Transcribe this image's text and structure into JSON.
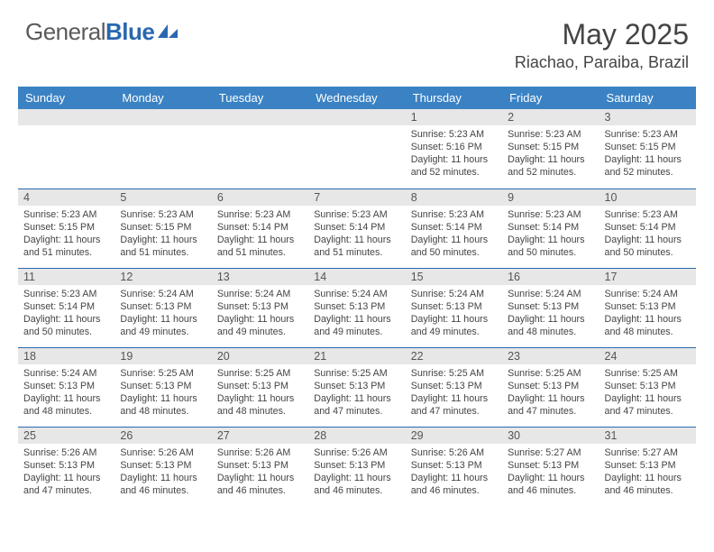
{
  "colors": {
    "header_bg": "#3b82c4",
    "header_text": "#ffffff",
    "row_divider": "#2968b0",
    "daynum_bg": "#e7e7e7",
    "body_text": "#444444",
    "logo_gray": "#5a5a5a",
    "logo_blue": "#2968b0",
    "page_bg": "#ffffff"
  },
  "typography": {
    "title_fontsize_pt": 24,
    "subtitle_fontsize_pt": 14,
    "header_fontsize_pt": 10,
    "daynum_fontsize_pt": 9.5,
    "body_fontsize_pt": 8
  },
  "logo": {
    "word1": "General",
    "word2": "Blue"
  },
  "title": "May 2025",
  "subtitle": "Riachao, Paraiba, Brazil",
  "day_headers": [
    "Sunday",
    "Monday",
    "Tuesday",
    "Wednesday",
    "Thursday",
    "Friday",
    "Saturday"
  ],
  "weeks": [
    [
      {
        "num": "",
        "sunrise": "",
        "sunset": "",
        "daylight": "",
        "empty": true
      },
      {
        "num": "",
        "sunrise": "",
        "sunset": "",
        "daylight": "",
        "empty": true
      },
      {
        "num": "",
        "sunrise": "",
        "sunset": "",
        "daylight": "",
        "empty": true
      },
      {
        "num": "",
        "sunrise": "",
        "sunset": "",
        "daylight": "",
        "empty": true
      },
      {
        "num": "1",
        "sunrise": "Sunrise: 5:23 AM",
        "sunset": "Sunset: 5:16 PM",
        "daylight": "Daylight: 11 hours and 52 minutes."
      },
      {
        "num": "2",
        "sunrise": "Sunrise: 5:23 AM",
        "sunset": "Sunset: 5:15 PM",
        "daylight": "Daylight: 11 hours and 52 minutes."
      },
      {
        "num": "3",
        "sunrise": "Sunrise: 5:23 AM",
        "sunset": "Sunset: 5:15 PM",
        "daylight": "Daylight: 11 hours and 52 minutes."
      }
    ],
    [
      {
        "num": "4",
        "sunrise": "Sunrise: 5:23 AM",
        "sunset": "Sunset: 5:15 PM",
        "daylight": "Daylight: 11 hours and 51 minutes."
      },
      {
        "num": "5",
        "sunrise": "Sunrise: 5:23 AM",
        "sunset": "Sunset: 5:15 PM",
        "daylight": "Daylight: 11 hours and 51 minutes."
      },
      {
        "num": "6",
        "sunrise": "Sunrise: 5:23 AM",
        "sunset": "Sunset: 5:14 PM",
        "daylight": "Daylight: 11 hours and 51 minutes."
      },
      {
        "num": "7",
        "sunrise": "Sunrise: 5:23 AM",
        "sunset": "Sunset: 5:14 PM",
        "daylight": "Daylight: 11 hours and 51 minutes."
      },
      {
        "num": "8",
        "sunrise": "Sunrise: 5:23 AM",
        "sunset": "Sunset: 5:14 PM",
        "daylight": "Daylight: 11 hours and 50 minutes."
      },
      {
        "num": "9",
        "sunrise": "Sunrise: 5:23 AM",
        "sunset": "Sunset: 5:14 PM",
        "daylight": "Daylight: 11 hours and 50 minutes."
      },
      {
        "num": "10",
        "sunrise": "Sunrise: 5:23 AM",
        "sunset": "Sunset: 5:14 PM",
        "daylight": "Daylight: 11 hours and 50 minutes."
      }
    ],
    [
      {
        "num": "11",
        "sunrise": "Sunrise: 5:23 AM",
        "sunset": "Sunset: 5:14 PM",
        "daylight": "Daylight: 11 hours and 50 minutes."
      },
      {
        "num": "12",
        "sunrise": "Sunrise: 5:24 AM",
        "sunset": "Sunset: 5:13 PM",
        "daylight": "Daylight: 11 hours and 49 minutes."
      },
      {
        "num": "13",
        "sunrise": "Sunrise: 5:24 AM",
        "sunset": "Sunset: 5:13 PM",
        "daylight": "Daylight: 11 hours and 49 minutes."
      },
      {
        "num": "14",
        "sunrise": "Sunrise: 5:24 AM",
        "sunset": "Sunset: 5:13 PM",
        "daylight": "Daylight: 11 hours and 49 minutes."
      },
      {
        "num": "15",
        "sunrise": "Sunrise: 5:24 AM",
        "sunset": "Sunset: 5:13 PM",
        "daylight": "Daylight: 11 hours and 49 minutes."
      },
      {
        "num": "16",
        "sunrise": "Sunrise: 5:24 AM",
        "sunset": "Sunset: 5:13 PM",
        "daylight": "Daylight: 11 hours and 48 minutes."
      },
      {
        "num": "17",
        "sunrise": "Sunrise: 5:24 AM",
        "sunset": "Sunset: 5:13 PM",
        "daylight": "Daylight: 11 hours and 48 minutes."
      }
    ],
    [
      {
        "num": "18",
        "sunrise": "Sunrise: 5:24 AM",
        "sunset": "Sunset: 5:13 PM",
        "daylight": "Daylight: 11 hours and 48 minutes."
      },
      {
        "num": "19",
        "sunrise": "Sunrise: 5:25 AM",
        "sunset": "Sunset: 5:13 PM",
        "daylight": "Daylight: 11 hours and 48 minutes."
      },
      {
        "num": "20",
        "sunrise": "Sunrise: 5:25 AM",
        "sunset": "Sunset: 5:13 PM",
        "daylight": "Daylight: 11 hours and 48 minutes."
      },
      {
        "num": "21",
        "sunrise": "Sunrise: 5:25 AM",
        "sunset": "Sunset: 5:13 PM",
        "daylight": "Daylight: 11 hours and 47 minutes."
      },
      {
        "num": "22",
        "sunrise": "Sunrise: 5:25 AM",
        "sunset": "Sunset: 5:13 PM",
        "daylight": "Daylight: 11 hours and 47 minutes."
      },
      {
        "num": "23",
        "sunrise": "Sunrise: 5:25 AM",
        "sunset": "Sunset: 5:13 PM",
        "daylight": "Daylight: 11 hours and 47 minutes."
      },
      {
        "num": "24",
        "sunrise": "Sunrise: 5:25 AM",
        "sunset": "Sunset: 5:13 PM",
        "daylight": "Daylight: 11 hours and 47 minutes."
      }
    ],
    [
      {
        "num": "25",
        "sunrise": "Sunrise: 5:26 AM",
        "sunset": "Sunset: 5:13 PM",
        "daylight": "Daylight: 11 hours and 47 minutes."
      },
      {
        "num": "26",
        "sunrise": "Sunrise: 5:26 AM",
        "sunset": "Sunset: 5:13 PM",
        "daylight": "Daylight: 11 hours and 46 minutes."
      },
      {
        "num": "27",
        "sunrise": "Sunrise: 5:26 AM",
        "sunset": "Sunset: 5:13 PM",
        "daylight": "Daylight: 11 hours and 46 minutes."
      },
      {
        "num": "28",
        "sunrise": "Sunrise: 5:26 AM",
        "sunset": "Sunset: 5:13 PM",
        "daylight": "Daylight: 11 hours and 46 minutes."
      },
      {
        "num": "29",
        "sunrise": "Sunrise: 5:26 AM",
        "sunset": "Sunset: 5:13 PM",
        "daylight": "Daylight: 11 hours and 46 minutes."
      },
      {
        "num": "30",
        "sunrise": "Sunrise: 5:27 AM",
        "sunset": "Sunset: 5:13 PM",
        "daylight": "Daylight: 11 hours and 46 minutes."
      },
      {
        "num": "31",
        "sunrise": "Sunrise: 5:27 AM",
        "sunset": "Sunset: 5:13 PM",
        "daylight": "Daylight: 11 hours and 46 minutes."
      }
    ]
  ]
}
